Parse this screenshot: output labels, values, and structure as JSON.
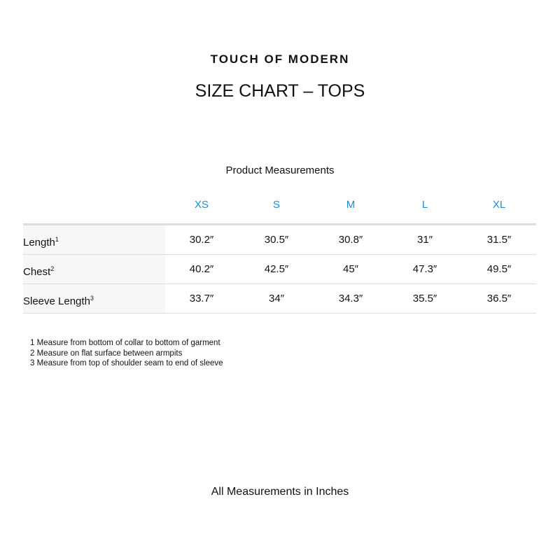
{
  "brand": "TOUCH OF MODERN",
  "title": "SIZE CHART – TOPS",
  "subtitle": "Product Measurements",
  "sizes": [
    "XS",
    "S",
    "M",
    "L",
    "XL"
  ],
  "rows": [
    {
      "label": "Length",
      "sup": "1",
      "values": [
        "30.2″",
        "30.5″",
        "30.8″",
        "31″",
        "31.5″"
      ]
    },
    {
      "label": "Chest",
      "sup": "2",
      "values": [
        "40.2″",
        "42.5″",
        "45″",
        "47.3″",
        "49.5″"
      ]
    },
    {
      "label": "Sleeve Length",
      "sup": "3",
      "values": [
        "33.7″",
        "34″",
        "34.3″",
        "35.5″",
        "36.5″"
      ]
    }
  ],
  "notes": [
    "1 Measure from bottom of collar to bottom of garment",
    "2 Measure on flat surface between armpits",
    "3 Measure from top of shoulder seam to end of sleeve"
  ],
  "footer": "All Measurements in Inches",
  "colors": {
    "header": "#1a8fd6",
    "label_bg": "#f7f7f7"
  }
}
